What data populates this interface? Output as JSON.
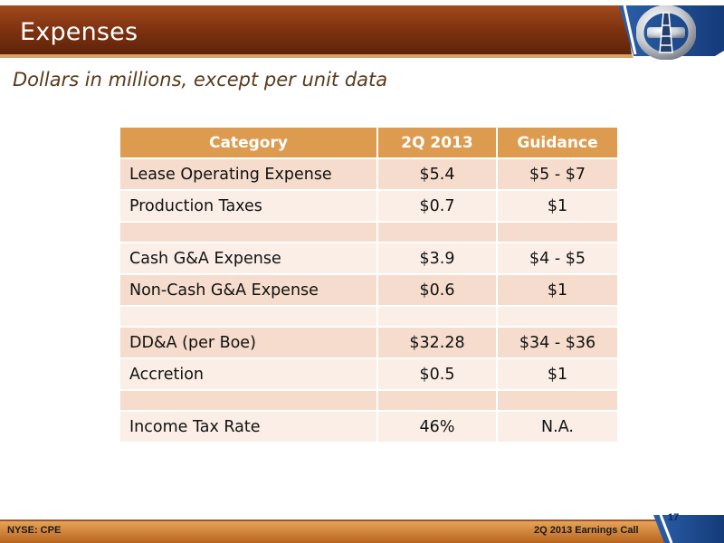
{
  "slide": {
    "title": "Expenses",
    "subtitle": "Dollars in millions, except per unit data"
  },
  "table": {
    "headers": [
      "Category",
      "2Q 2013",
      "Guidance"
    ],
    "rows": [
      [
        "Lease Operating Expense",
        "$5.4",
        "$5 - $7"
      ],
      [
        "Production Taxes",
        "$0.7",
        "$1"
      ],
      [
        "",
        "",
        ""
      ],
      [
        "Cash G&A Expense",
        "$3.9",
        "$4 - $5"
      ],
      [
        "Non-Cash G&A Expense",
        "$0.6",
        "$1"
      ],
      [
        "",
        "",
        ""
      ],
      [
        "DD&A (per Boe)",
        "$32.28",
        "$34 - $36"
      ],
      [
        "Accretion",
        "$0.5",
        "$1"
      ],
      [
        "",
        "",
        ""
      ],
      [
        "Income Tax Rate",
        "46%",
        "N.A."
      ]
    ]
  },
  "footer": {
    "ticker": "NYSE: CPE",
    "event": "2Q 2013 Earnings Call",
    "page_number": "17"
  },
  "colors": {
    "title_bar": "#8a3a12",
    "header_fill": "#dc9b4f",
    "row_dark": "#f5dccc",
    "row_light": "#fbeee6",
    "footer_band": "#c8762a",
    "accent_blue": "#1f4f9a"
  },
  "icons": [
    "company-logo"
  ]
}
